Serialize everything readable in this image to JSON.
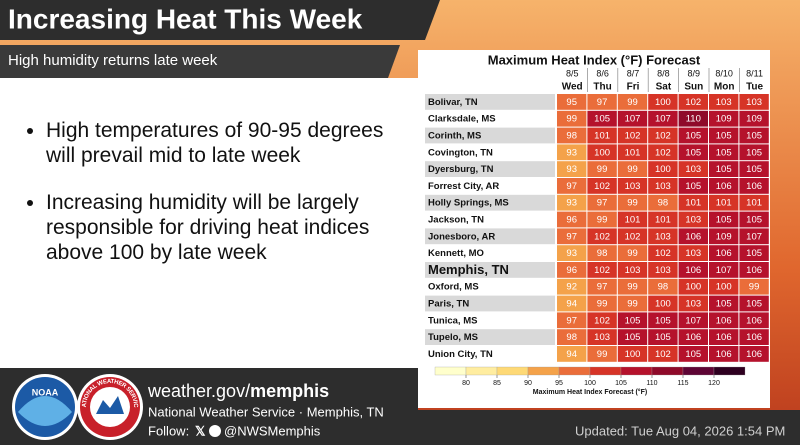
{
  "header": {
    "title": "Increasing Heat This Week",
    "subtitle": "High humidity returns late week"
  },
  "bullets": [
    "High temperatures of 90-95 degrees will prevail mid to late week",
    "Increasing humidity will be largely responsible for driving heat indices above 100 by late week"
  ],
  "table": {
    "title": "Maximum Heat Index (°F) Forecast",
    "dates": [
      "8/5",
      "8/6",
      "8/7",
      "8/8",
      "8/9",
      "8/10",
      "8/11"
    ],
    "days": [
      "Wed",
      "Thu",
      "Fri",
      "Sat",
      "Sun",
      "Mon",
      "Tue"
    ],
    "emphasized_row": 10,
    "rows": [
      {
        "city": "Bolivar, TN",
        "values": [
          95,
          97,
          99,
          100,
          102,
          103,
          103
        ]
      },
      {
        "city": "Clarksdale, MS",
        "values": [
          99,
          105,
          107,
          107,
          110,
          109,
          109
        ]
      },
      {
        "city": "Corinth, MS",
        "values": [
          98,
          101,
          102,
          102,
          105,
          105,
          105
        ]
      },
      {
        "city": "Covington, TN",
        "values": [
          93,
          100,
          101,
          102,
          105,
          105,
          105
        ]
      },
      {
        "city": "Dyersburg, TN",
        "values": [
          93,
          99,
          99,
          100,
          103,
          105,
          105
        ]
      },
      {
        "city": "Forrest City, AR",
        "values": [
          97,
          102,
          103,
          103,
          105,
          106,
          106
        ]
      },
      {
        "city": "Holly Springs, MS",
        "values": [
          93,
          97,
          99,
          98,
          101,
          101,
          101
        ]
      },
      {
        "city": "Jackson, TN",
        "values": [
          96,
          99,
          101,
          101,
          103,
          105,
          105
        ]
      },
      {
        "city": "Jonesboro, AR",
        "values": [
          97,
          102,
          102,
          103,
          106,
          109,
          107
        ]
      },
      {
        "city": "Kennett, MO",
        "values": [
          93,
          98,
          99,
          102,
          103,
          106,
          105
        ]
      },
      {
        "city": "Memphis, TN",
        "values": [
          96,
          102,
          103,
          103,
          106,
          107,
          106
        ]
      },
      {
        "city": "Oxford, MS",
        "values": [
          92,
          97,
          99,
          98,
          100,
          100,
          99
        ]
      },
      {
        "city": "Paris, TN",
        "values": [
          94,
          99,
          99,
          100,
          103,
          105,
          105
        ]
      },
      {
        "city": "Tunica, MS",
        "values": [
          97,
          102,
          105,
          105,
          107,
          106,
          106
        ]
      },
      {
        "city": "Tupelo, MS",
        "values": [
          98,
          103,
          105,
          105,
          106,
          106,
          106
        ]
      },
      {
        "city": "Union City, TN",
        "values": [
          94,
          99,
          100,
          102,
          105,
          106,
          106
        ]
      }
    ]
  },
  "colorbar": {
    "ticks": [
      80,
      85,
      90,
      95,
      100,
      105,
      110,
      115,
      120
    ],
    "colors": [
      "#ffffcc",
      "#ffeda0",
      "#fed976",
      "#f4a24a",
      "#ea6d3a",
      "#d63427",
      "#b5122c",
      "#8f0a2a",
      "#5e0535",
      "#2e0020"
    ],
    "label": "Maximum Heat Index Forecast (°F)"
  },
  "footer": {
    "url_prefix": "weather.gov/",
    "url_bold": "memphis",
    "office": "National Weather Service · Memphis, TN",
    "follow": "Follow:",
    "handle": "@NWSMemphis",
    "updated": "Updated: Tue Aug 04, 2026 1:54 PM"
  },
  "logos": {
    "noaa": "NOAA",
    "nws": "NATIONAL WEATHER SERVICE"
  }
}
